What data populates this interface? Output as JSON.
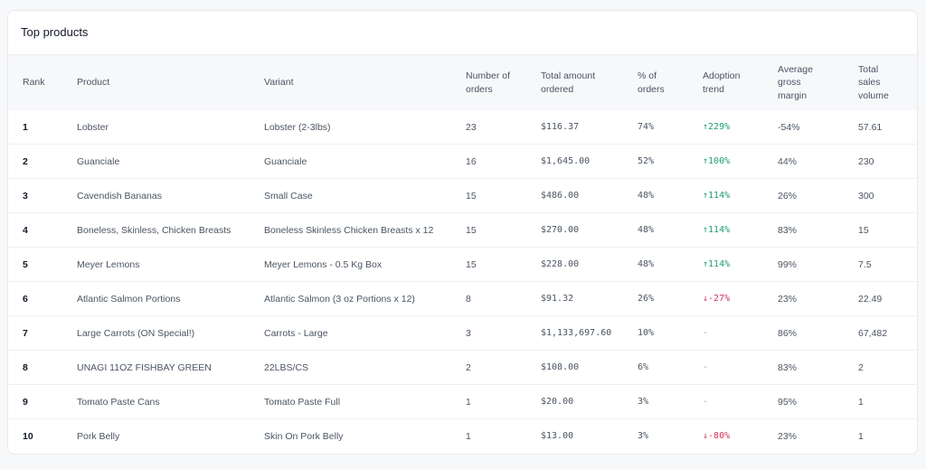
{
  "title": "Top products",
  "colors": {
    "up": "#1f9d6b",
    "down": "#d1365d"
  },
  "columns": [
    "Rank",
    "Product",
    "Variant",
    "Number of orders",
    "Total amount ordered",
    "% of orders",
    "Adoption trend",
    "Average gross margin",
    "Total sales volume"
  ],
  "rows": [
    {
      "rank": "1",
      "product": "Lobster",
      "variant": "Lobster (2-3lbs)",
      "orders": "23",
      "total": "$116.37",
      "pct": "74%",
      "trend": "229%",
      "trend_dir": "up",
      "margin": "-54%",
      "volume": "57.61"
    },
    {
      "rank": "2",
      "product": "Guanciale",
      "variant": "Guanciale",
      "orders": "16",
      "total": "$1,645.00",
      "pct": "52%",
      "trend": "100%",
      "trend_dir": "up",
      "margin": "44%",
      "volume": "230"
    },
    {
      "rank": "3",
      "product": "Cavendish Bananas",
      "variant": "Small Case",
      "orders": "15",
      "total": "$486.00",
      "pct": "48%",
      "trend": "114%",
      "trend_dir": "up",
      "margin": "26%",
      "volume": "300"
    },
    {
      "rank": "4",
      "product": "Boneless, Skinless, Chicken Breasts",
      "variant": "Boneless Skinless Chicken Breasts x 12",
      "orders": "15",
      "total": "$270.00",
      "pct": "48%",
      "trend": "114%",
      "trend_dir": "up",
      "margin": "83%",
      "volume": "15"
    },
    {
      "rank": "5",
      "product": "Meyer Lemons",
      "variant": "Meyer Lemons - 0.5 Kg Box",
      "orders": "15",
      "total": "$228.00",
      "pct": "48%",
      "trend": "114%",
      "trend_dir": "up",
      "margin": "99%",
      "volume": "7.5"
    },
    {
      "rank": "6",
      "product": "Atlantic Salmon Portions",
      "variant": "Atlantic Salmon (3 oz Portions x 12)",
      "orders": "8",
      "total": "$91.32",
      "pct": "26%",
      "trend": "-27%",
      "trend_dir": "down",
      "margin": "23%",
      "volume": "22.49"
    },
    {
      "rank": "7",
      "product": "Large Carrots (ON Special!)",
      "variant": "Carrots - Large",
      "orders": "3",
      "total": "$1,133,697.60",
      "pct": "10%",
      "trend": "-",
      "trend_dir": "none",
      "margin": "86%",
      "volume": "67,482"
    },
    {
      "rank": "8",
      "product": "UNAGI 11OZ FISHBAY GREEN",
      "variant": "22LBS/CS",
      "orders": "2",
      "total": "$108.00",
      "pct": "6%",
      "trend": "-",
      "trend_dir": "none",
      "margin": "83%",
      "volume": "2"
    },
    {
      "rank": "9",
      "product": "Tomato Paste Cans",
      "variant": "Tomato Paste Full",
      "orders": "1",
      "total": "$20.00",
      "pct": "3%",
      "trend": "-",
      "trend_dir": "none",
      "margin": "95%",
      "volume": "1"
    },
    {
      "rank": "10",
      "product": "Pork Belly",
      "variant": "Skin On Pork Belly",
      "orders": "1",
      "total": "$13.00",
      "pct": "3%",
      "trend": "-80%",
      "trend_dir": "down",
      "margin": "23%",
      "volume": "1"
    }
  ]
}
